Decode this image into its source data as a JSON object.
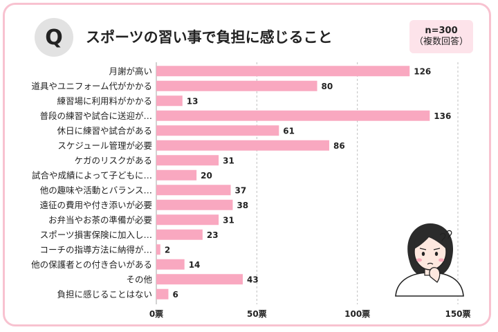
{
  "header": {
    "q_mark": "Q",
    "title": "スポーツの習い事で負担に感じること",
    "badge_n": "n=300",
    "badge_note": "（複数回答）"
  },
  "colors": {
    "bar": "#f9a8c0",
    "frame": "#f8c2d0",
    "grid": "#bfbfbf"
  },
  "chart_data": {
    "type": "bar",
    "orientation": "horizontal",
    "categories": [
      "月謝が高い",
      "道具やユニフォーム代がかかる",
      "練習場に利用料がかかる",
      "普段の練習や試合に送迎が…",
      "休日に練習や試合がある",
      "スケジュール管理が必要",
      "ケガのリスクがある",
      "試合や成績によって子どもに…",
      "他の趣味や活動とバランス…",
      "遠征の費用や付き添いが必要",
      "お弁当やお茶の準備が必要",
      "スポーツ損害保険に加入し…",
      "コーチの指導方法に納得が…",
      "他の保護者との付き合いがある",
      "その他",
      "負担に感じることはない"
    ],
    "values": [
      126,
      80,
      13,
      136,
      61,
      86,
      31,
      20,
      37,
      38,
      31,
      23,
      2,
      14,
      43,
      6
    ],
    "xlim": [
      0,
      150
    ],
    "ticks": [
      0,
      50,
      100,
      150
    ],
    "tick_labels": [
      "0票",
      "50票",
      "100票",
      "150票"
    ],
    "grid": true
  }
}
